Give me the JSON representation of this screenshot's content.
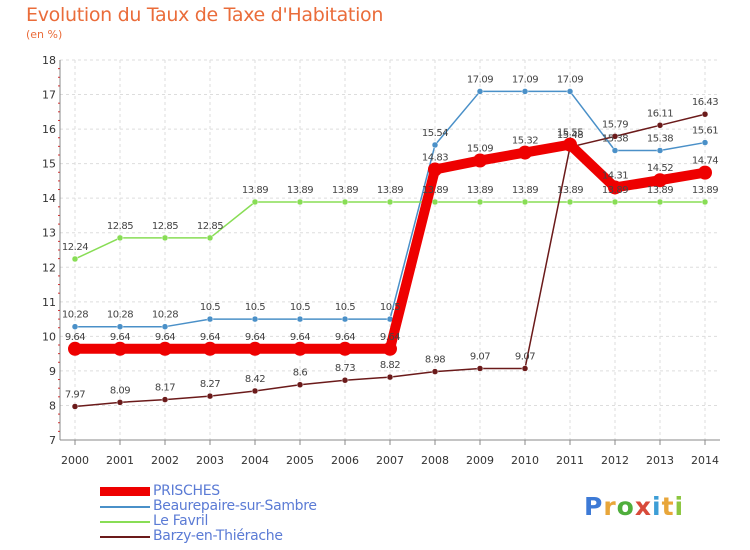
{
  "title": "Evolution du Taux de Taxe d'Habitation",
  "subtitle": "(en %)",
  "logo": {
    "text": "Proxiti",
    "letters": [
      "P",
      "r",
      "o",
      "x",
      "i",
      "t",
      "i"
    ]
  },
  "chart_data": {
    "type": "line",
    "title": "Evolution du Taux de Taxe d'Habitation",
    "ylabel": "(en %)",
    "xlabel": "",
    "x": [
      "2000",
      "2001",
      "2002",
      "2003",
      "2004",
      "2005",
      "2006",
      "2007",
      "2008",
      "2009",
      "2010",
      "2011",
      "2012",
      "2013",
      "2014"
    ],
    "ylim": [
      7,
      18
    ],
    "yticks": [
      "7",
      "8",
      "9",
      "10",
      "11",
      "12",
      "13",
      "14",
      "15",
      "16",
      "17",
      "18"
    ],
    "grid": true,
    "legend_position": "bottom-left",
    "series": [
      {
        "name": "PRISCHES",
        "color": "#ee0000",
        "values": [
          9.64,
          9.64,
          9.64,
          9.64,
          9.64,
          9.64,
          9.64,
          9.64,
          14.83,
          15.09,
          15.32,
          15.55,
          14.31,
          14.52,
          14.74
        ],
        "labels": [
          "9.64",
          "9.64",
          "9.64",
          "9.64",
          "9.64",
          "9.64",
          "9.64",
          "9.64",
          "14.83",
          "15.09",
          "15.32",
          "15.55",
          "14.31",
          "14.52",
          "14.74"
        ]
      },
      {
        "name": "Beaurepaire-sur-Sambre",
        "color": "#4a90c8",
        "values": [
          10.28,
          10.28,
          10.28,
          10.5,
          10.5,
          10.5,
          10.5,
          10.5,
          15.54,
          17.09,
          17.09,
          17.09,
          15.38,
          15.38,
          15.61
        ],
        "labels": [
          "10.28",
          "10.28",
          "10.28",
          "10.5",
          "10.5",
          "10.5",
          "10.5",
          "10.5",
          "15.54",
          "17.09",
          "17.09",
          "17.09",
          "15.38",
          "15.38",
          "15.61"
        ]
      },
      {
        "name": "Le Favril",
        "color": "#88dd55",
        "values": [
          12.24,
          12.85,
          12.85,
          12.85,
          13.89,
          13.89,
          13.89,
          13.89,
          13.89,
          13.89,
          13.89,
          13.89,
          13.89,
          13.89,
          13.89
        ],
        "labels": [
          "12.24",
          "12.85",
          "12.85",
          "12.85",
          "13.89",
          "13.89",
          "13.89",
          "13.89",
          "13.89",
          "13.89",
          "13.89",
          "13.89",
          "13.89",
          "13.89",
          "13.89"
        ]
      },
      {
        "name": "Barzy-en-Thiérache",
        "color": "#6b1a1a",
        "values": [
          7.97,
          8.09,
          8.17,
          8.27,
          8.42,
          8.6,
          8.73,
          8.82,
          8.98,
          9.07,
          9.07,
          15.48,
          15.79,
          16.11,
          16.43
        ],
        "labels": [
          "7.97",
          "8.09",
          "8.17",
          "8.27",
          "8.42",
          "8.6",
          "8.73",
          "8.82",
          "8.98",
          "9.07",
          "9.07",
          "15.48",
          "15.79",
          "16.11",
          "16.43"
        ]
      }
    ]
  }
}
